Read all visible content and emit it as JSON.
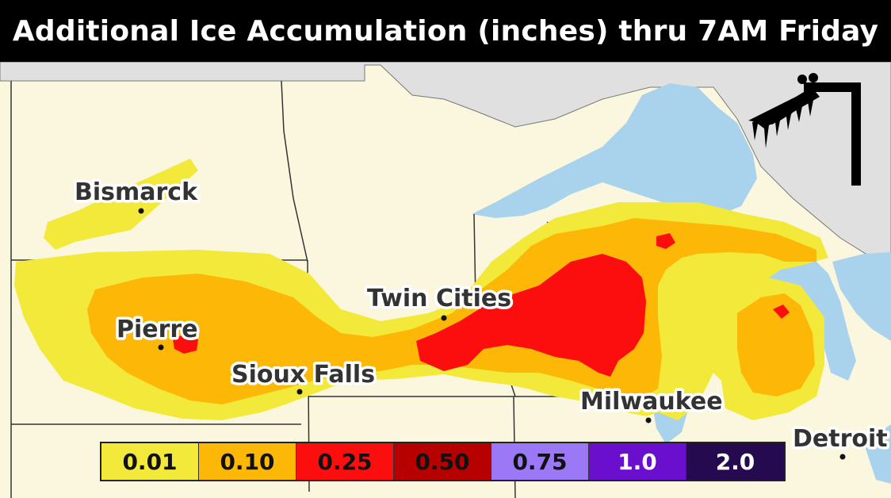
{
  "title": "Additional Ice Accumulation (inches) thru 7AM Friday",
  "cities": {
    "bismarck": "Bismarck",
    "pierre": "Pierre",
    "sioux_falls": "Sioux Falls",
    "twin_cities": "Twin Cities",
    "milwaukee": "Milwaukee",
    "detroit": "Detroit"
  },
  "legend": [
    {
      "label": "0.01",
      "color": "#f2e93a",
      "text_color": "#111111"
    },
    {
      "label": "0.10",
      "color": "#fdb706",
      "text_color": "#111111"
    },
    {
      "label": "0.25",
      "color": "#fd0e0e",
      "text_color": "#111111"
    },
    {
      "label": "0.50",
      "color": "#b70000",
      "text_color": "#111111"
    },
    {
      "label": "0.75",
      "color": "#9b78f5",
      "text_color": "#111111"
    },
    {
      "label": "1.0",
      "color": "#6b0fcf",
      "text_color": "#ffffff"
    },
    {
      "label": "2.0",
      "color": "#260a4f",
      "text_color": "#ffffff"
    }
  ],
  "colors": {
    "land": "#fbf7df",
    "water": "#a9d3ec",
    "outside_land": "#e0e0e0"
  },
  "logo_icon": "icicle-roof-icon"
}
